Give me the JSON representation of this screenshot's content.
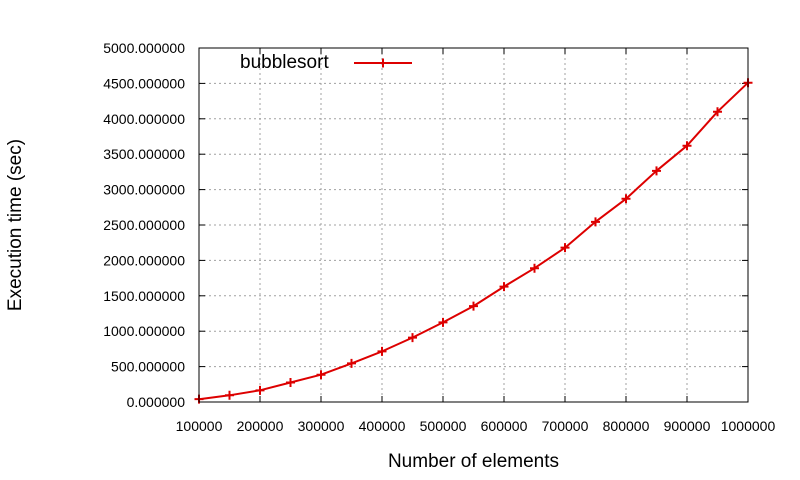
{
  "chart_data": {
    "type": "line",
    "title": "",
    "xlabel": "Number of elements",
    "ylabel": "Execution time (sec)",
    "xlim": [
      100000,
      1000000
    ],
    "ylim": [
      0,
      5000
    ],
    "grid": true,
    "legend_position": "top-left",
    "x_ticks": [
      100000,
      200000,
      300000,
      400000,
      500000,
      600000,
      700000,
      800000,
      900000,
      1000000
    ],
    "x_tick_labels": [
      "100000",
      "200000",
      "300000",
      "400000",
      "500000",
      "600000",
      "700000",
      "800000",
      "900000",
      "1000000"
    ],
    "y_ticks": [
      0,
      500,
      1000,
      1500,
      2000,
      2500,
      3000,
      3500,
      4000,
      4500,
      5000
    ],
    "y_tick_labels": [
      "0.000000",
      "500.000000",
      "1000.000000",
      "1500.000000",
      "2000.000000",
      "2500.000000",
      "3000.000000",
      "3500.000000",
      "4000.000000",
      "4500.000000",
      "5000.000000"
    ],
    "series": [
      {
        "name": "bubblesort",
        "color": "#dd0000",
        "marker": "plus",
        "x": [
          100000,
          150000,
          200000,
          250000,
          300000,
          350000,
          400000,
          450000,
          500000,
          550000,
          600000,
          650000,
          700000,
          750000,
          800000,
          850000,
          900000,
          950000,
          1000000
        ],
        "y": [
          40,
          95,
          165,
          275,
          385,
          545,
          715,
          910,
          1125,
          1355,
          1630,
          1890,
          2180,
          2545,
          2870,
          3265,
          3620,
          4100,
          4510
        ]
      }
    ]
  }
}
